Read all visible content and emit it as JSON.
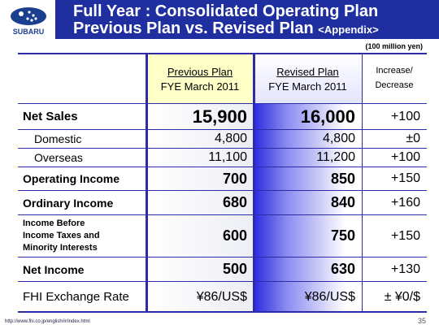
{
  "header": {
    "logo_text": "SUBARU",
    "title_line1": "Full Year : Consolidated Operating Plan",
    "title_line2": "Previous Plan vs. Revised Plan",
    "title_suffix": "<Appendix>"
  },
  "unit": "(100 million yen)",
  "table": {
    "columns": [
      {
        "line1": "Previous Plan",
        "line2": "FYE March 2011"
      },
      {
        "line1": "Revised Plan",
        "line2": "FYE March 2011"
      },
      {
        "line1": "Increase/",
        "line2": "Decrease"
      }
    ],
    "rows": [
      [
        "Net Sales",
        "15,900",
        "16,000",
        "+100"
      ],
      [
        "Domestic",
        "4,800",
        "4,800",
        "±0"
      ],
      [
        "Overseas",
        "11,100",
        "11,200",
        "+100"
      ],
      [
        "Operating Income",
        "700",
        "850",
        "+150"
      ],
      [
        "Ordinary Income",
        "680",
        "840",
        "+160"
      ],
      [
        [
          "Income Before",
          "Income Taxes and",
          "Minority Interests"
        ],
        "600",
        "750",
        "+150"
      ],
      [
        "Net Income",
        "500",
        "630",
        "+130"
      ],
      [
        "FHI Exchange Rate",
        "¥86/US$",
        "¥86/US$",
        "± ¥0/$"
      ]
    ]
  },
  "footer": {
    "url": "http://www.fhi.co.jp/english/ir/index.html",
    "page": "35"
  }
}
